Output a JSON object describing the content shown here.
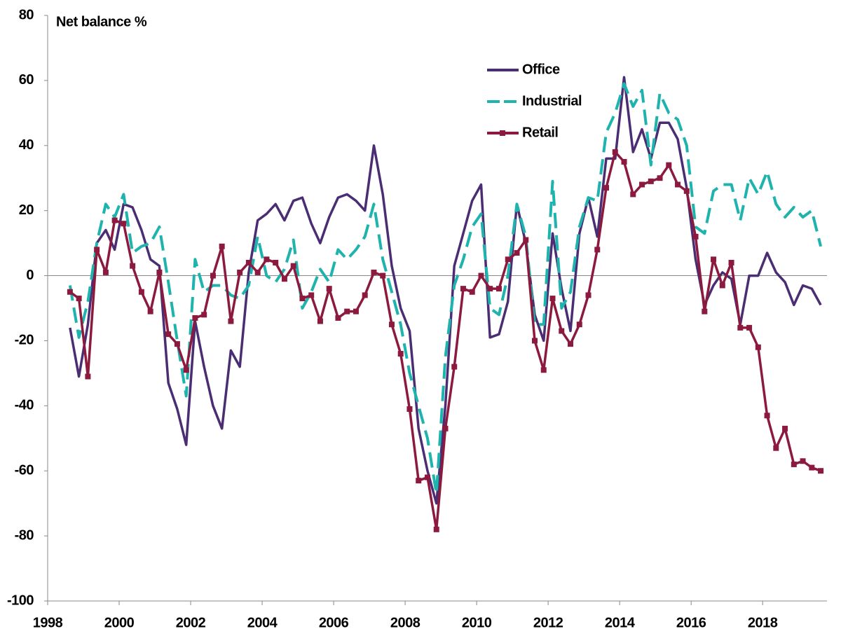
{
  "chart_data": {
    "type": "line",
    "y_label": "Net balance %",
    "legend": "upper right",
    "xlim": [
      1998,
      2019.8
    ],
    "xticks": [
      1998,
      2000,
      2002,
      2004,
      2006,
      2008,
      2010,
      2012,
      2014,
      2016,
      2018
    ],
    "ylim": [
      -100,
      80
    ],
    "yticks": [
      -100,
      -80,
      -60,
      -40,
      -20,
      0,
      20,
      40,
      60,
      80
    ],
    "x": [
      1998.625,
      1998.875,
      1999.125,
      1999.375,
      1999.625,
      1999.875,
      2000.125,
      2000.375,
      2000.625,
      2000.875,
      2001.125,
      2001.375,
      2001.625,
      2001.875,
      2002.125,
      2002.375,
      2002.625,
      2002.875,
      2003.125,
      2003.375,
      2003.625,
      2003.875,
      2004.125,
      2004.375,
      2004.625,
      2004.875,
      2005.125,
      2005.375,
      2005.625,
      2005.875,
      2006.125,
      2006.375,
      2006.625,
      2006.875,
      2007.125,
      2007.375,
      2007.625,
      2007.875,
      2008.125,
      2008.375,
      2008.625,
      2008.875,
      2009.125,
      2009.375,
      2009.625,
      2009.875,
      2010.125,
      2010.375,
      2010.625,
      2010.875,
      2011.125,
      2011.375,
      2011.625,
      2011.875,
      2012.125,
      2012.375,
      2012.625,
      2012.875,
      2013.125,
      2013.375,
      2013.625,
      2013.875,
      2014.125,
      2014.375,
      2014.625,
      2014.875,
      2015.125,
      2015.375,
      2015.625,
      2015.875,
      2016.125,
      2016.375,
      2016.625,
      2016.875,
      2017.125,
      2017.375,
      2017.625,
      2017.875,
      2018.125,
      2018.375,
      2018.625,
      2018.875,
      2019.125,
      2019.375,
      2019.625
    ],
    "series": [
      {
        "name": "Office",
        "color": "#4b2d73",
        "style": "solid",
        "values": [
          -16,
          -31,
          -15,
          10,
          14,
          8,
          22,
          21,
          14,
          5,
          3,
          -33,
          -41,
          -52,
          -14,
          -28,
          -40,
          -47,
          -23,
          -28,
          1,
          17,
          19,
          22,
          17,
          23,
          24,
          16,
          10,
          18,
          24,
          25,
          23,
          20,
          40,
          25,
          3,
          -10,
          -17,
          -47,
          -60,
          -70,
          -40,
          3,
          13,
          23,
          28,
          -19,
          -18,
          -8,
          22,
          10,
          -12,
          -20,
          13,
          -4,
          -17,
          13,
          24,
          12,
          36,
          36,
          61,
          38,
          45,
          36,
          47,
          47,
          42,
          27,
          5,
          -9,
          -3,
          1,
          -1,
          -15,
          0,
          0,
          7,
          1,
          -2,
          -9,
          -3,
          -4,
          -9
        ]
      },
      {
        "name": "Industrial",
        "color": "#1fb3ae",
        "style": "dashed",
        "values": [
          -3,
          -19,
          -8,
          10,
          22,
          18,
          25,
          7,
          9,
          10,
          15,
          -2,
          -20,
          -37,
          5,
          -5,
          -3,
          -3,
          -6,
          -7,
          -3,
          12,
          0,
          -2,
          2,
          11,
          -10,
          -5,
          2,
          -2,
          8,
          5,
          8,
          12,
          22,
          5,
          -5,
          -15,
          -30,
          -40,
          -50,
          -67,
          -25,
          -3,
          5,
          15,
          19,
          -10,
          -12,
          0,
          22,
          12,
          -15,
          -15,
          29,
          -10,
          -5,
          15,
          24,
          23,
          44,
          50,
          59,
          52,
          57,
          34,
          56,
          50,
          48,
          40,
          15,
          13,
          26,
          28,
          28,
          17,
          30,
          25,
          32,
          22,
          18,
          21,
          18,
          20,
          9
        ]
      },
      {
        "name": "Retail",
        "color": "#8b1a3e",
        "style": "solid",
        "marker": "square",
        "values": [
          -5,
          -7,
          -31,
          8,
          1,
          17,
          16,
          3,
          -5,
          -11,
          1,
          -18,
          -21,
          -29,
          -13,
          -12,
          0,
          9,
          -14,
          1,
          4,
          1,
          5,
          4,
          -1,
          3,
          -7,
          -6,
          -14,
          -4,
          -13,
          -11,
          -11,
          -6,
          1,
          0,
          -15,
          -24,
          -41,
          -63,
          -62,
          -78,
          -47,
          -28,
          -4,
          -5,
          0,
          -4,
          -4,
          5,
          7,
          11,
          -20,
          -29,
          -7,
          -17,
          -21,
          -15,
          -6,
          8,
          27,
          38,
          35,
          25,
          28,
          29,
          30,
          34,
          28,
          26,
          12,
          -11,
          5,
          -3,
          4,
          -16,
          -16,
          -22,
          -43,
          -53,
          -47,
          -58,
          -57,
          -59,
          -60
        ]
      }
    ]
  }
}
